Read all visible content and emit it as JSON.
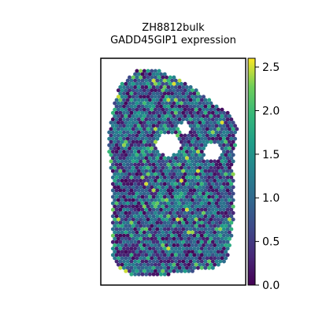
{
  "chart_data": {
    "type": "scatter",
    "title_line1": "ZH8812bulk",
    "title_line2": "GADD45GIP1 expression",
    "xlabel": "",
    "ylabel": "",
    "colorbar": {
      "colormap": "viridis",
      "range": [
        0.0,
        2.6
      ],
      "ticks": [
        0.0,
        0.5,
        1.0,
        1.5,
        2.0,
        2.5
      ],
      "tick_labels": [
        "0.0",
        "0.5",
        "1.0",
        "1.5",
        "2.0",
        "2.5"
      ],
      "position": "right"
    },
    "axes_ticks": "none",
    "grid": false,
    "spots": {
      "layout": "hexagonal-grid",
      "value_distribution": "mostly 0.3–1.3, scattered highs up to ~2.5"
    }
  }
}
